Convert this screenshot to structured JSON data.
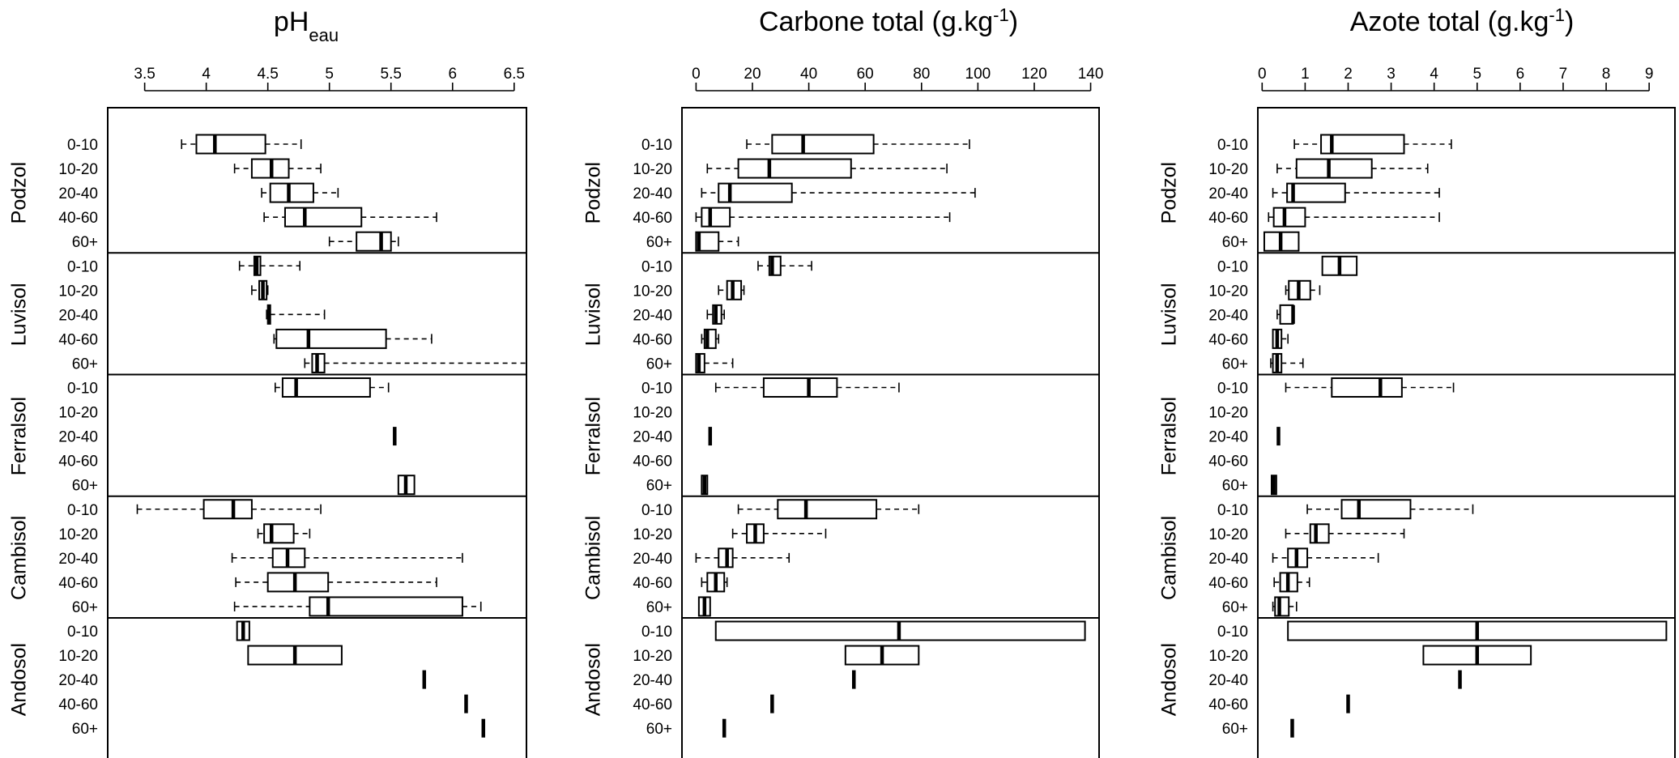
{
  "chart_data": [
    {
      "type": "boxplot",
      "title": "pH",
      "title_sub": "eau",
      "title_sup": "",
      "title_suffix": "",
      "xlim": [
        3.2,
        6.6
      ],
      "ticks": [
        3.5,
        4,
        4.5,
        5,
        5.5,
        6,
        6.5
      ],
      "tick_labels": [
        "3.5",
        "4",
        "4.5",
        "5",
        "5.5",
        "6",
        "6.5"
      ],
      "groups": [
        {
          "soil": "Podzol",
          "depths": [
            "0-10",
            "10-20",
            "20-40",
            "40-60",
            "60+"
          ],
          "stats": [
            [
              3.8,
              3.92,
              4.07,
              4.48,
              4.77
            ],
            [
              4.23,
              4.37,
              4.53,
              4.67,
              4.93
            ],
            [
              4.45,
              4.52,
              4.67,
              4.87,
              5.07
            ],
            [
              4.47,
              4.64,
              4.8,
              5.26,
              5.87
            ],
            [
              5.0,
              5.22,
              5.42,
              5.5,
              5.56
            ]
          ]
        },
        {
          "soil": "Luvisol",
          "depths": [
            "0-10",
            "10-20",
            "20-40",
            "40-60",
            "60+"
          ],
          "stats": [
            [
              4.27,
              4.39,
              4.41,
              4.44,
              4.76
            ],
            [
              4.37,
              4.43,
              4.46,
              4.49,
              4.5
            ],
            [
              4.49,
              4.5,
              4.51,
              4.52,
              4.96
            ],
            [
              4.55,
              4.57,
              4.83,
              5.46,
              5.83
            ],
            [
              4.8,
              4.86,
              4.9,
              4.96,
              6.6
            ]
          ]
        },
        {
          "soil": "Ferralsol",
          "depths": [
            "0-10",
            "10-20",
            "20-40",
            "40-60",
            "60+"
          ],
          "stats": [
            [
              4.56,
              4.62,
              4.73,
              5.33,
              5.48
            ],
            null,
            [
              5.53,
              5.53,
              5.53,
              5.53,
              5.53
            ],
            null,
            [
              5.56,
              5.56,
              5.62,
              5.69,
              5.69
            ]
          ]
        },
        {
          "soil": "Cambisol",
          "depths": [
            "0-10",
            "10-20",
            "20-40",
            "40-60",
            "60+"
          ],
          "stats": [
            [
              3.44,
              3.98,
              4.22,
              4.37,
              4.93
            ],
            [
              4.42,
              4.47,
              4.53,
              4.71,
              4.84
            ],
            [
              4.21,
              4.54,
              4.66,
              4.8,
              6.08
            ],
            [
              4.24,
              4.5,
              4.72,
              4.99,
              5.87
            ],
            [
              4.23,
              4.84,
              4.99,
              6.08,
              6.23
            ]
          ]
        },
        {
          "soil": "Andosol",
          "depths": [
            "0-10",
            "10-20",
            "20-40",
            "40-60",
            "60+"
          ],
          "stats": [
            [
              4.25,
              4.25,
              4.3,
              4.35,
              4.35
            ],
            [
              4.34,
              4.34,
              4.72,
              5.1,
              5.1
            ],
            [
              5.77,
              5.77,
              5.77,
              5.77,
              5.77
            ],
            [
              6.11,
              6.11,
              6.11,
              6.11,
              6.11
            ],
            [
              6.25,
              6.25,
              6.25,
              6.25,
              6.25
            ]
          ]
        }
      ]
    },
    {
      "type": "boxplot",
      "title": "Carbone total (g.kg",
      "title_sub": "",
      "title_sup": "-1",
      "title_suffix": ")",
      "xlim": [
        -5,
        143
      ],
      "ticks": [
        0,
        20,
        40,
        60,
        80,
        100,
        120,
        140
      ],
      "tick_labels": [
        "0",
        "20",
        "40",
        "60",
        "80",
        "100",
        "120",
        "140"
      ],
      "groups": [
        {
          "soil": "Podzol",
          "depths": [
            "0-10",
            "10-20",
            "20-40",
            "40-60",
            "60+"
          ],
          "stats": [
            [
              18,
              27,
              38,
              63,
              97
            ],
            [
              4,
              15,
              26,
              55,
              89
            ],
            [
              2,
              8,
              12,
              34,
              99
            ],
            [
              0,
              2,
              5,
              12,
              90
            ],
            [
              0,
              0,
              1,
              8,
              15
            ]
          ]
        },
        {
          "soil": "Luvisol",
          "depths": [
            "0-10",
            "10-20",
            "20-40",
            "40-60",
            "60+"
          ],
          "stats": [
            [
              22,
              26,
              27,
              30,
              41
            ],
            [
              8,
              11,
              13,
              16,
              17
            ],
            [
              4,
              6,
              7,
              9,
              10
            ],
            [
              2,
              3,
              4,
              7,
              8
            ],
            [
              0,
              0,
              1,
              3,
              13
            ]
          ]
        },
        {
          "soil": "Ferralsol",
          "depths": [
            "0-10",
            "10-20",
            "20-40",
            "40-60",
            "60+"
          ],
          "stats": [
            [
              7,
              24,
              40,
              50,
              72
            ],
            null,
            [
              5,
              5,
              5,
              5,
              5
            ],
            null,
            [
              2,
              2,
              3,
              4,
              4
            ]
          ]
        },
        {
          "soil": "Cambisol",
          "depths": [
            "0-10",
            "10-20",
            "20-40",
            "40-60",
            "60+"
          ],
          "stats": [
            [
              15,
              29,
              39,
              64,
              79
            ],
            [
              13,
              18,
              21,
              24,
              46
            ],
            [
              0,
              8,
              11,
              13,
              33
            ],
            [
              2,
              4,
              7,
              10,
              11
            ],
            [
              1,
              1,
              3,
              5,
              5
            ]
          ]
        },
        {
          "soil": "Andosol",
          "depths": [
            "0-10",
            "10-20",
            "20-40",
            "40-60",
            "60+"
          ],
          "stats": [
            [
              7,
              7,
              72,
              138,
              138
            ],
            [
              53,
              53,
              66,
              79,
              79
            ],
            [
              56,
              56,
              56,
              56,
              56
            ],
            [
              27,
              27,
              27,
              27,
              27
            ],
            [
              10,
              10,
              10,
              10,
              10
            ]
          ]
        }
      ]
    },
    {
      "type": "boxplot",
      "title": "Azote total (g.kg",
      "title_sub": "",
      "title_sup": "-1",
      "title_suffix": ")",
      "xlim": [
        -0.1,
        9.6
      ],
      "ticks": [
        0,
        1,
        2,
        3,
        4,
        5,
        6,
        7,
        8,
        9
      ],
      "tick_labels": [
        "0",
        "1",
        "2",
        "3",
        "4",
        "5",
        "6",
        "7",
        "8",
        "9"
      ],
      "groups": [
        {
          "soil": "Podzol",
          "depths": [
            "0-10",
            "10-20",
            "20-40",
            "40-60",
            "60+"
          ],
          "stats": [
            [
              0.75,
              1.37,
              1.62,
              3.3,
              4.4
            ],
            [
              0.35,
              0.8,
              1.55,
              2.55,
              3.85
            ],
            [
              0.25,
              0.58,
              0.72,
              1.93,
              4.12
            ],
            [
              0.15,
              0.27,
              0.52,
              1.0,
              4.12
            ],
            [
              0.05,
              0.05,
              0.43,
              0.85,
              0.85
            ]
          ]
        },
        {
          "soil": "Luvisol",
          "depths": [
            "0-10",
            "10-20",
            "20-40",
            "40-60",
            "60+"
          ],
          "stats": [
            [
              1.4,
              1.4,
              1.8,
              2.2,
              2.2
            ],
            [
              0.55,
              0.62,
              0.85,
              1.12,
              1.34
            ],
            [
              0.35,
              0.42,
              0.72,
              0.72,
              0.72
            ],
            [
              0.25,
              0.25,
              0.35,
              0.45,
              0.6
            ],
            [
              0.2,
              0.25,
              0.35,
              0.45,
              0.95
            ]
          ]
        },
        {
          "soil": "Ferralsol",
          "depths": [
            "0-10",
            "10-20",
            "20-40",
            "40-60",
            "60+"
          ],
          "stats": [
            [
              0.55,
              1.62,
              2.75,
              3.25,
              4.45
            ],
            null,
            [
              0.38,
              0.38,
              0.38,
              0.38,
              0.38
            ],
            null,
            [
              0.22,
              0.22,
              0.27,
              0.33,
              0.33
            ]
          ]
        },
        {
          "soil": "Cambisol",
          "depths": [
            "0-10",
            "10-20",
            "20-40",
            "40-60",
            "60+"
          ],
          "stats": [
            [
              1.05,
              1.85,
              2.25,
              3.45,
              4.9
            ],
            [
              0.55,
              1.12,
              1.25,
              1.55,
              3.3
            ],
            [
              0.25,
              0.6,
              0.8,
              1.05,
              2.7
            ],
            [
              0.28,
              0.42,
              0.6,
              0.82,
              1.1
            ],
            [
              0.25,
              0.3,
              0.4,
              0.62,
              0.8
            ]
          ]
        },
        {
          "soil": "Andosol",
          "depths": [
            "0-10",
            "10-20",
            "20-40",
            "40-60",
            "60+"
          ],
          "stats": [
            [
              0.6,
              0.6,
              5.0,
              9.4,
              9.4
            ],
            [
              3.75,
              3.75,
              5.0,
              6.25,
              6.25
            ],
            [
              4.6,
              4.6,
              4.6,
              4.6,
              4.6
            ],
            [
              2.0,
              2.0,
              2.0,
              2.0,
              2.0
            ],
            [
              0.7,
              0.7,
              0.7,
              0.7,
              0.7
            ]
          ]
        }
      ]
    }
  ]
}
